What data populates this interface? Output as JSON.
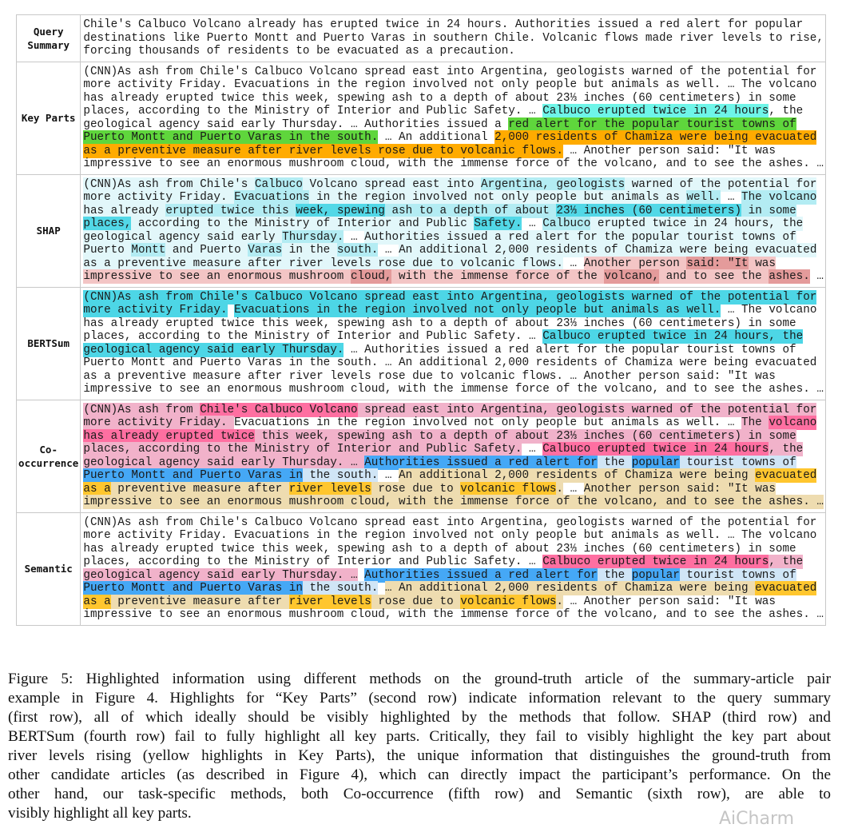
{
  "palette": {
    "aqua": "#6ef5e8",
    "green": "#5fd63c",
    "orange": "#ffab00",
    "s1": "#e2f7fa",
    "s2": "#b3ecf3",
    "s3": "#52d8e7",
    "r1": "#f3c5c5",
    "r2": "#e49b9b",
    "b": "#4dd6e6",
    "p": "#f1b2ca",
    "P": "#ff6fa1",
    "B": "#45a8f6",
    "lb": "#d0e5f6",
    "y": "#eedcb0",
    "Y": "#ffc62e"
  },
  "rows": [
    {
      "label": "Query\nSummary",
      "lines": [
        [
          [
            "Chile's Calbuco Volcano already has erupted twice in 24 hours. Authorities issued a red alert for popular",
            ""
          ]
        ],
        [
          [
            "destinations like Puerto Montt and Puerto Varas in southern Chile. Volcanic flows made river levels to rise,",
            ""
          ]
        ],
        [
          [
            "forcing thousands of residents to be evacuated as a precaution.",
            ""
          ]
        ]
      ]
    },
    {
      "label": "Key Parts",
      "lines": [
        [
          [
            "(CNN)As ash from Chile's Calbuco Volcano spread east into Argentina, geologists warned of the potential for",
            ""
          ]
        ],
        [
          [
            "more activity Friday. Evacuations in the region involved not only people but animals as well. … The volcano",
            ""
          ]
        ],
        [
          [
            "has already erupted twice this week, spewing ash to a depth of about 23⅓ inches (60 centimeters) in some",
            ""
          ]
        ],
        [
          [
            "places, according to the Ministry of Interior and Public Safety. … ",
            ""
          ],
          [
            "Calbuco erupted twice in 24 hours",
            "aqua"
          ],
          [
            ", the",
            ""
          ]
        ],
        [
          [
            "geological agency said early Thursday. … Authorities issued a ",
            ""
          ],
          [
            "red alert for the popular tourist towns of",
            "green"
          ]
        ],
        [
          [
            "Puerto Montt and Puerto Varas in the south.",
            "green"
          ],
          [
            " … An additional ",
            ""
          ],
          [
            "2,000 residents of Chamiza were being evacuated",
            "orange"
          ]
        ],
        [
          [
            "as a preventive measure after river levels rose due to volcanic flows.",
            "orange"
          ],
          [
            " … Another person said: \"It was",
            ""
          ]
        ],
        [
          [
            "impressive to see an enormous mushroom cloud, with the immense force of the volcano, and to see the ashes. …",
            ""
          ]
        ]
      ]
    },
    {
      "label": "SHAP",
      "lines": [
        [
          [
            "(CNN)As ash from Chile's ",
            "s1"
          ],
          [
            "Calbuco",
            "s2"
          ],
          [
            " Volcano spread east into ",
            "s1"
          ],
          [
            "Argentina, geologists",
            "s2"
          ],
          [
            " warned of the potential for",
            "s1"
          ]
        ],
        [
          [
            "more activity Friday. ",
            "s1"
          ],
          [
            "Evacuations",
            "s2"
          ],
          [
            " in the region involved not only people but animals as ",
            "s1"
          ],
          [
            "well.",
            "s2"
          ],
          [
            " … ",
            ""
          ],
          [
            "The volcano",
            "s2"
          ]
        ],
        [
          [
            "has already ",
            "s1"
          ],
          [
            "erupted twice this ",
            "s2"
          ],
          [
            "week, spewing",
            "s3"
          ],
          [
            " ash to a depth of about ",
            "s2"
          ],
          [
            "23⅓ inches (60 centimeters)",
            "s3"
          ],
          [
            " in some",
            "s2"
          ]
        ],
        [
          [
            "places,",
            "s3"
          ],
          [
            " according to the Ministry of Interior and Public ",
            "s1"
          ],
          [
            "Safety.",
            "s3"
          ],
          [
            " … ",
            ""
          ],
          [
            "Calbuco",
            "s2"
          ],
          [
            " erupted twice in 24 hours, the",
            "s1"
          ]
        ],
        [
          [
            "geological agency said early ",
            "s1"
          ],
          [
            "Thursday.",
            "s2"
          ],
          [
            " … ",
            ""
          ],
          [
            "Authorities issued a red alert for the popular tourist towns of",
            "s1"
          ]
        ],
        [
          [
            "Puerto ",
            "s1"
          ],
          [
            "Montt",
            "s2"
          ],
          [
            " and Puerto ",
            "s1"
          ],
          [
            "Varas",
            "s2"
          ],
          [
            " in the ",
            "s1"
          ],
          [
            "south.",
            "s2"
          ],
          [
            " … ",
            ""
          ],
          [
            "An additional 2,000 residents of Chamiza were being evacuated",
            "s1"
          ]
        ],
        [
          [
            "as a preventive measure after river levels rose due to volcanic flows.",
            "s1"
          ],
          [
            " … ",
            ""
          ],
          [
            "Another person ",
            "r1"
          ],
          [
            "said: \"It",
            "r2"
          ],
          [
            " was",
            "r1"
          ]
        ],
        [
          [
            "impressive to see an enormous mushroom ",
            "r1"
          ],
          [
            "cloud,",
            "r2"
          ],
          [
            " with the immense force of the ",
            "r1"
          ],
          [
            "volcano,",
            "r2"
          ],
          [
            " and to see the ",
            "r1"
          ],
          [
            "ashes.",
            "r2"
          ],
          [
            " …",
            ""
          ]
        ]
      ]
    },
    {
      "label": "BERTSum",
      "lines": [
        [
          [
            "(CNN)As ash from Chile's Calbuco Volcano spread east into Argentina, geologists warned of the potential for",
            "b"
          ]
        ],
        [
          [
            "more activity Friday.",
            "b"
          ],
          [
            " ",
            ""
          ],
          [
            "Evacuations in the region involved not only people but animals as well.",
            "b"
          ],
          [
            " … The volcano",
            ""
          ]
        ],
        [
          [
            "has already erupted twice this week, spewing ash to a depth of about 23⅓ inches (60 centimeters) in some",
            ""
          ]
        ],
        [
          [
            "places, according to the Ministry of Interior and Public Safety. … ",
            ""
          ],
          [
            "Calbuco erupted twice in 24 hours, the",
            "b"
          ]
        ],
        [
          [
            "geological agency said early Thursday.",
            "b"
          ],
          [
            " … Authorities issued a red alert for the popular tourist towns of",
            ""
          ]
        ],
        [
          [
            "Puerto Montt and Puerto Varas in the south. … An additional 2,000 residents of Chamiza were being evacuated",
            ""
          ]
        ],
        [
          [
            "as a preventive measure after river levels rose due to volcanic flows. … Another person said: \"It was",
            ""
          ]
        ],
        [
          [
            "impressive to see an enormous mushroom cloud, with the immense force of the volcano, and to see the ashes. …",
            ""
          ]
        ]
      ]
    },
    {
      "label": "Co-\noccurrence",
      "lines": [
        [
          [
            "(CNN)As ash from ",
            "p"
          ],
          [
            "Chile's Calbuco Volcano",
            "P"
          ],
          [
            " spread east into Argentina, geologists warned of the potential for",
            "p"
          ]
        ],
        [
          [
            "more activity Friday. ",
            "p"
          ],
          [
            "Evacuations in the region involved not only people but animals as well. … ",
            ""
          ],
          [
            "The ",
            "p"
          ],
          [
            "volcano",
            "P"
          ]
        ],
        [
          [
            "has already erupted twice",
            "P"
          ],
          [
            " this week, spewing ash to a depth of about 23⅓ inches (60 centimeters) in some",
            "p"
          ]
        ],
        [
          [
            "places, according to the Ministry of Interior and Public Safety.",
            "p"
          ],
          [
            " … ",
            ""
          ],
          [
            "Calbuco erupted twice in 24 hours",
            "P"
          ],
          [
            ", the",
            "p"
          ]
        ],
        [
          [
            "geological agency said early Thursday. … ",
            "p"
          ],
          [
            "Authorities issued a red alert for",
            "B"
          ],
          [
            " the ",
            "lb"
          ],
          [
            "popular",
            "B"
          ],
          [
            " tourist towns of",
            "lb"
          ]
        ],
        [
          [
            "Puerto Montt and Puerto Varas in",
            "B"
          ],
          [
            " the south.",
            "lb"
          ],
          [
            " … ",
            ""
          ],
          [
            "An additional 2,000 residents of Chamiza were being ",
            "y"
          ],
          [
            "evacuated",
            "Y"
          ]
        ],
        [
          [
            "as a",
            "Y"
          ],
          [
            " preventive measure after ",
            "y"
          ],
          [
            "river levels",
            "Y"
          ],
          [
            " rose due to ",
            "y"
          ],
          [
            "volcanic flows",
            "Y"
          ],
          [
            ".",
            "y"
          ],
          [
            " … ",
            ""
          ],
          [
            "Another person said: \"It was",
            "y"
          ]
        ],
        [
          [
            "impressive to see an enormous mushroom cloud, with the immense force of the volcano, and to see the ashes. …",
            "y"
          ]
        ]
      ]
    },
    {
      "label": "Semantic",
      "lines": [
        [
          [
            "(CNN)As ash from Chile's Calbuco Volcano spread east into Argentina, geologists warned of the potential for",
            ""
          ]
        ],
        [
          [
            "more activity Friday. Evacuations in the region involved not only people but animals as well. … The volcano",
            ""
          ]
        ],
        [
          [
            "has already erupted twice this week, spewing ash to a depth of about 23⅓ inches (60 centimeters) in some",
            ""
          ]
        ],
        [
          [
            "places, according to the Ministry of Interior and Public Safety. … ",
            ""
          ],
          [
            "Calbuco erupted twice in 24 hours",
            "P"
          ],
          [
            ", the",
            "p"
          ]
        ],
        [
          [
            "geological agency said early Thursday. …",
            "p"
          ],
          [
            " ",
            ""
          ],
          [
            "Authorities issued a red alert for",
            "B"
          ],
          [
            " the ",
            "lb"
          ],
          [
            "popular",
            "B"
          ],
          [
            " tourist towns of",
            "lb"
          ]
        ],
        [
          [
            "Puerto Montt and Puerto Varas in",
            "B"
          ],
          [
            " the south.",
            "lb"
          ],
          [
            " ",
            ""
          ],
          [
            "… An additional 2,000 residents of Chamiza were being ",
            "y"
          ],
          [
            "evacuated",
            "Y"
          ]
        ],
        [
          [
            "as a",
            "Y"
          ],
          [
            " preventive measure after ",
            "y"
          ],
          [
            "river levels",
            "Y"
          ],
          [
            " rose due to ",
            "y"
          ],
          [
            "volcanic flows",
            "Y"
          ],
          [
            ".",
            "y"
          ],
          [
            " … Another person said: \"It was",
            ""
          ]
        ],
        [
          [
            "impressive to see an enormous mushroom cloud, with the immense force of the volcano, and to see the ashes. …",
            ""
          ]
        ]
      ]
    }
  ],
  "caption": [
    "Figure 5: Highlighted information using different methods on the ground-truth article of the summary-article pair",
    "example in Figure 4. Highlights for “Key Parts” (second row) indicate information relevant to the query summary",
    "(first row), all of which ideally should be visibly highlighted by the methods that follow. SHAP (third row) and",
    "BERTSum (fourth row) fail to fully highlight all key parts. Critically, they fail to visibly highlight the key part about",
    "river levels rising (yellow highlights in Key Parts), the unique information that distinguishes the ground-truth from",
    "other candidate articles (as described in Figure 4), which can directly impact the participant’s performance. On the",
    "other hand, our task-specific methods, both Co-occurrence (fifth row) and Semantic (sixth row), are able to",
    "visibly highlight all key parts."
  ],
  "watermark": "AiCharm"
}
